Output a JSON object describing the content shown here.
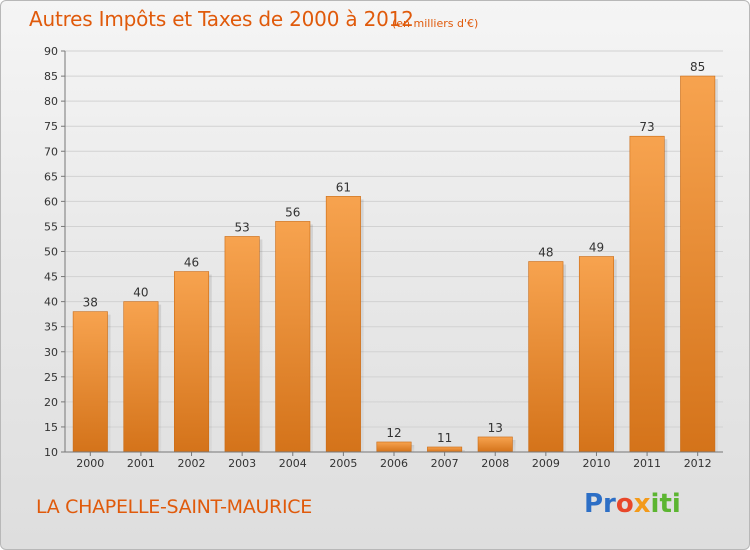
{
  "header": {
    "title": "Autres Impôts et Taxes de 2000 à 2012",
    "subtitle": "(en milliers d'€)"
  },
  "footer": {
    "city": "LA CHAPELLE-SAINT-MAURICE",
    "logo_parts": [
      "Pr",
      "o",
      "x",
      "iti"
    ]
  },
  "colors": {
    "title": "#e05a0b",
    "bar_top": "#f7a34f",
    "bar_bottom": "#d4731a",
    "logo_blue": "#2d6fc6",
    "logo_red": "#e8472a",
    "logo_orange": "#f39a1a",
    "logo_green": "#5cb531"
  },
  "chart_data": {
    "type": "bar",
    "title": "Autres Impôts et Taxes de 2000 à 2012",
    "subtitle": "(en milliers d'€)",
    "categories": [
      "2000",
      "2001",
      "2002",
      "2003",
      "2004",
      "2005",
      "2006",
      "2007",
      "2008",
      "2009",
      "2010",
      "2011",
      "2012"
    ],
    "values": [
      38,
      40,
      46,
      53,
      56,
      61,
      12,
      11,
      13,
      48,
      49,
      73,
      85
    ],
    "xlabel": "",
    "ylabel": "",
    "ylim": [
      10,
      90
    ],
    "yticks": [
      10,
      15,
      20,
      25,
      30,
      35,
      40,
      45,
      50,
      55,
      60,
      65,
      70,
      75,
      80,
      85,
      90
    ],
    "grid": true,
    "data_labels": true
  }
}
